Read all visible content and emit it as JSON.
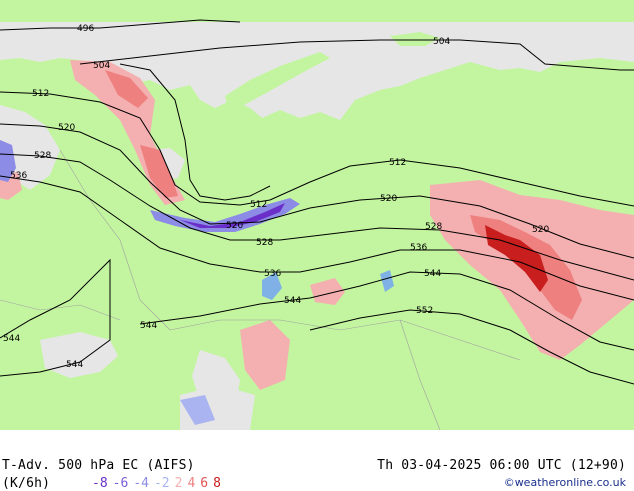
{
  "map": {
    "land_color": "#c3f5a0",
    "sea_color": "#e6e6e6",
    "contour_color": "#000000",
    "contours": [
      {
        "value": "496",
        "labels": [
          "496"
        ]
      },
      {
        "value": "504",
        "labels": [
          "504",
          "504"
        ]
      },
      {
        "value": "512",
        "labels": [
          "512",
          "512",
          "512"
        ]
      },
      {
        "value": "520",
        "labels": [
          "520",
          "520",
          "520",
          "520"
        ]
      },
      {
        "value": "528",
        "labels": [
          "528",
          "528",
          "528"
        ]
      },
      {
        "value": "536",
        "labels": [
          "536",
          "536",
          "536"
        ]
      },
      {
        "value": "544",
        "labels": [
          "544",
          "544",
          "544",
          "544",
          "544"
        ]
      },
      {
        "value": "552",
        "labels": [
          "552"
        ]
      }
    ]
  },
  "footer": {
    "title": "T-Adv. 500 hPa  EC (AIFS)",
    "units": "(K/6h)",
    "datetime": "Th 03-04-2025 06:00 UTC (12+90)",
    "credit": "©weatheronline.co.uk"
  },
  "legend": {
    "items": [
      {
        "label": "-8",
        "color": "#6a2fc8"
      },
      {
        "label": "-6",
        "color": "#7b5cd6"
      },
      {
        "label": "-4",
        "color": "#8c8ce6"
      },
      {
        "label": "-2",
        "color": "#aab4f0"
      },
      {
        "label": "2",
        "color": "#f4b0b0"
      },
      {
        "label": "4",
        "color": "#ee8080"
      },
      {
        "label": "6",
        "color": "#e05050"
      },
      {
        "label": "8",
        "color": "#c81e1e"
      }
    ]
  }
}
